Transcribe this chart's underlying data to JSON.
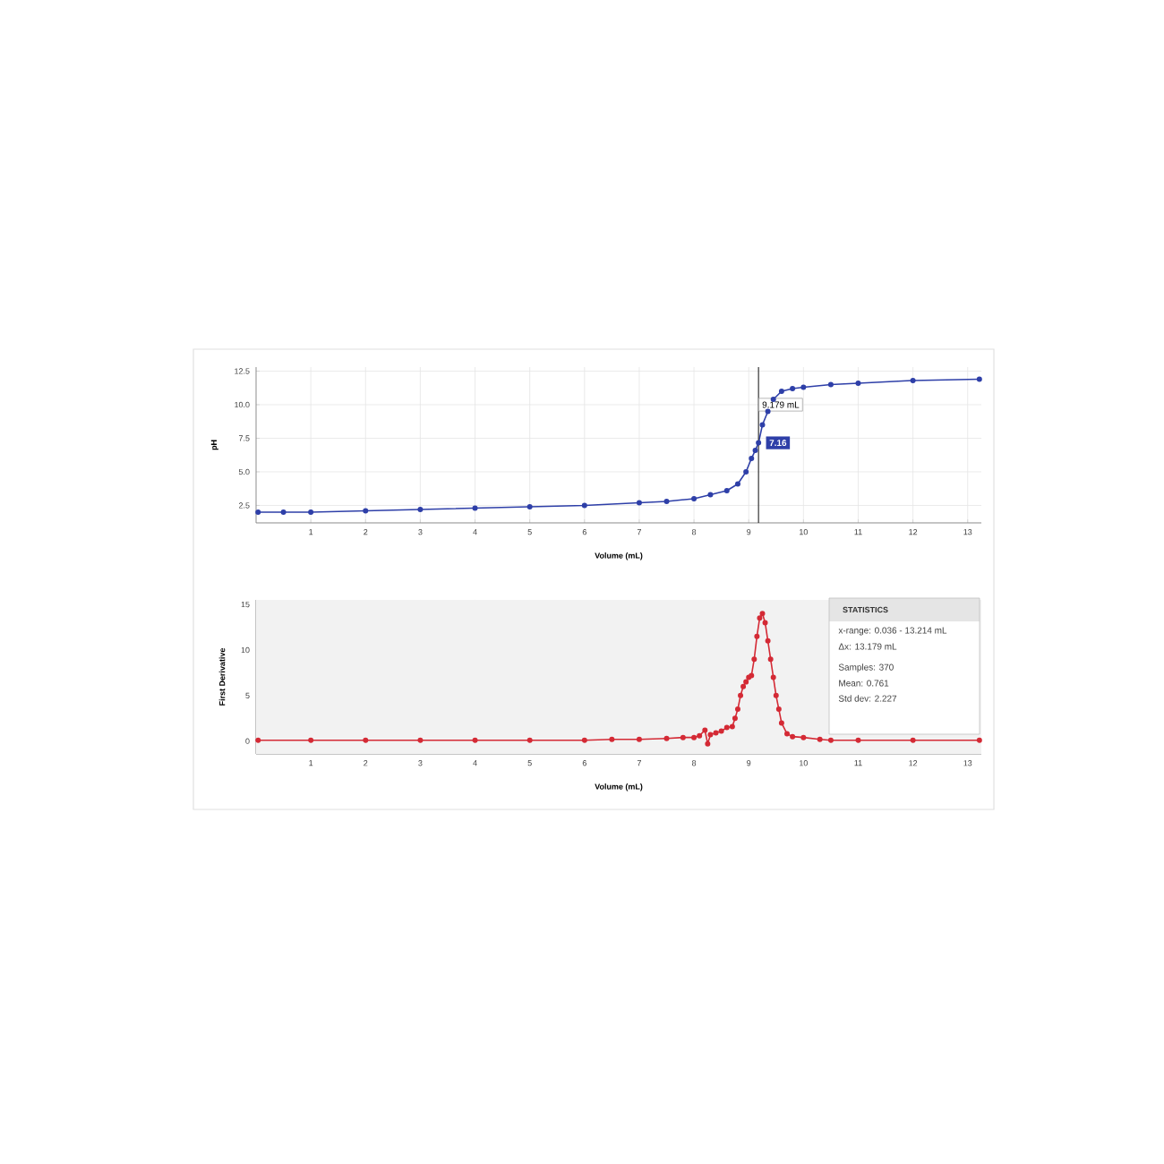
{
  "chart_data": [
    {
      "type": "line",
      "xlabel": "Volume (mL)",
      "ylabel": "pH",
      "marker": "circle",
      "grid": true,
      "x": [
        0.036,
        0.5,
        1,
        2,
        3,
        4,
        5,
        6,
        7,
        7.5,
        8,
        8.3,
        8.6,
        8.8,
        8.95,
        9.05,
        9.12,
        9.179,
        9.25,
        9.35,
        9.45,
        9.6,
        9.8,
        10,
        10.5,
        11,
        12,
        13.214
      ],
      "series": [
        {
          "color": "#2e3fa8",
          "values": [
            2.0,
            2.0,
            2.0,
            2.1,
            2.2,
            2.3,
            2.4,
            2.5,
            2.7,
            2.8,
            3.0,
            3.3,
            3.6,
            4.1,
            5.0,
            6.0,
            6.6,
            7.16,
            8.5,
            9.5,
            10.4,
            11.0,
            11.2,
            11.3,
            11.5,
            11.6,
            11.8,
            11.9
          ]
        }
      ],
      "xlim": [
        0,
        13.25
      ],
      "ylim": [
        1.2,
        12.8
      ],
      "xticks": [
        1,
        2,
        3,
        4,
        5,
        6,
        7,
        8,
        9,
        10,
        11,
        12,
        13
      ],
      "yticks": [
        2.5,
        {
          "value": 5,
          "label": "5.0"
        },
        7.5,
        {
          "value": 10,
          "label": "10.0"
        },
        12.5
      ],
      "ref_lines": [
        {
          "axis": "x",
          "value": 9.179,
          "label": "9.179 mL",
          "color": "#333333"
        }
      ],
      "annotations": [
        {
          "text": "7.16",
          "x": 9.179,
          "y": 7.16
        }
      ]
    },
    {
      "type": "line",
      "xlabel": "Volume (mL)",
      "ylabel": "First Derivative",
      "marker": "circle",
      "grid": true,
      "x": [
        0.036,
        1,
        2,
        3,
        4,
        5,
        6,
        6.5,
        7,
        7.5,
        7.8,
        8.0,
        8.1,
        8.2,
        8.25,
        8.3,
        8.4,
        8.5,
        8.6,
        8.7,
        8.75,
        8.8,
        8.85,
        8.9,
        8.95,
        9.0,
        9.05,
        9.1,
        9.15,
        9.2,
        9.25,
        9.3,
        9.35,
        9.4,
        9.45,
        9.5,
        9.55,
        9.6,
        9.7,
        9.8,
        10,
        10.3,
        10.5,
        11,
        12,
        13.214
      ],
      "series": [
        {
          "color": "#d42a35",
          "values": [
            0.1,
            0.1,
            0.1,
            0.1,
            0.1,
            0.1,
            0.1,
            0.2,
            0.2,
            0.3,
            0.4,
            0.4,
            0.6,
            1.2,
            -0.3,
            0.7,
            0.9,
            1.1,
            1.5,
            1.6,
            2.5,
            3.5,
            5.0,
            6.0,
            6.5,
            7.0,
            7.2,
            9.0,
            11.5,
            13.5,
            14.0,
            13.0,
            11.0,
            9.0,
            7.0,
            5.0,
            3.5,
            2.0,
            0.8,
            0.5,
            0.4,
            0.2,
            0.1,
            0.1,
            0.1,
            0.1
          ]
        }
      ],
      "xlim": [
        0,
        13.25
      ],
      "ylim": [
        -1.4,
        15.5
      ],
      "xticks": [
        1,
        2,
        3,
        4,
        5,
        6,
        7,
        8,
        9,
        10,
        11,
        12,
        13
      ],
      "yticks": [
        0,
        5,
        10,
        15
      ],
      "annotations": [
        "STATISTICS",
        "x-range: 0.036 - 13.214 mL",
        "Δx: 13.179 mL",
        "Samples: 370",
        "Mean: 0.761",
        "Std dev: 2.227"
      ]
    }
  ]
}
